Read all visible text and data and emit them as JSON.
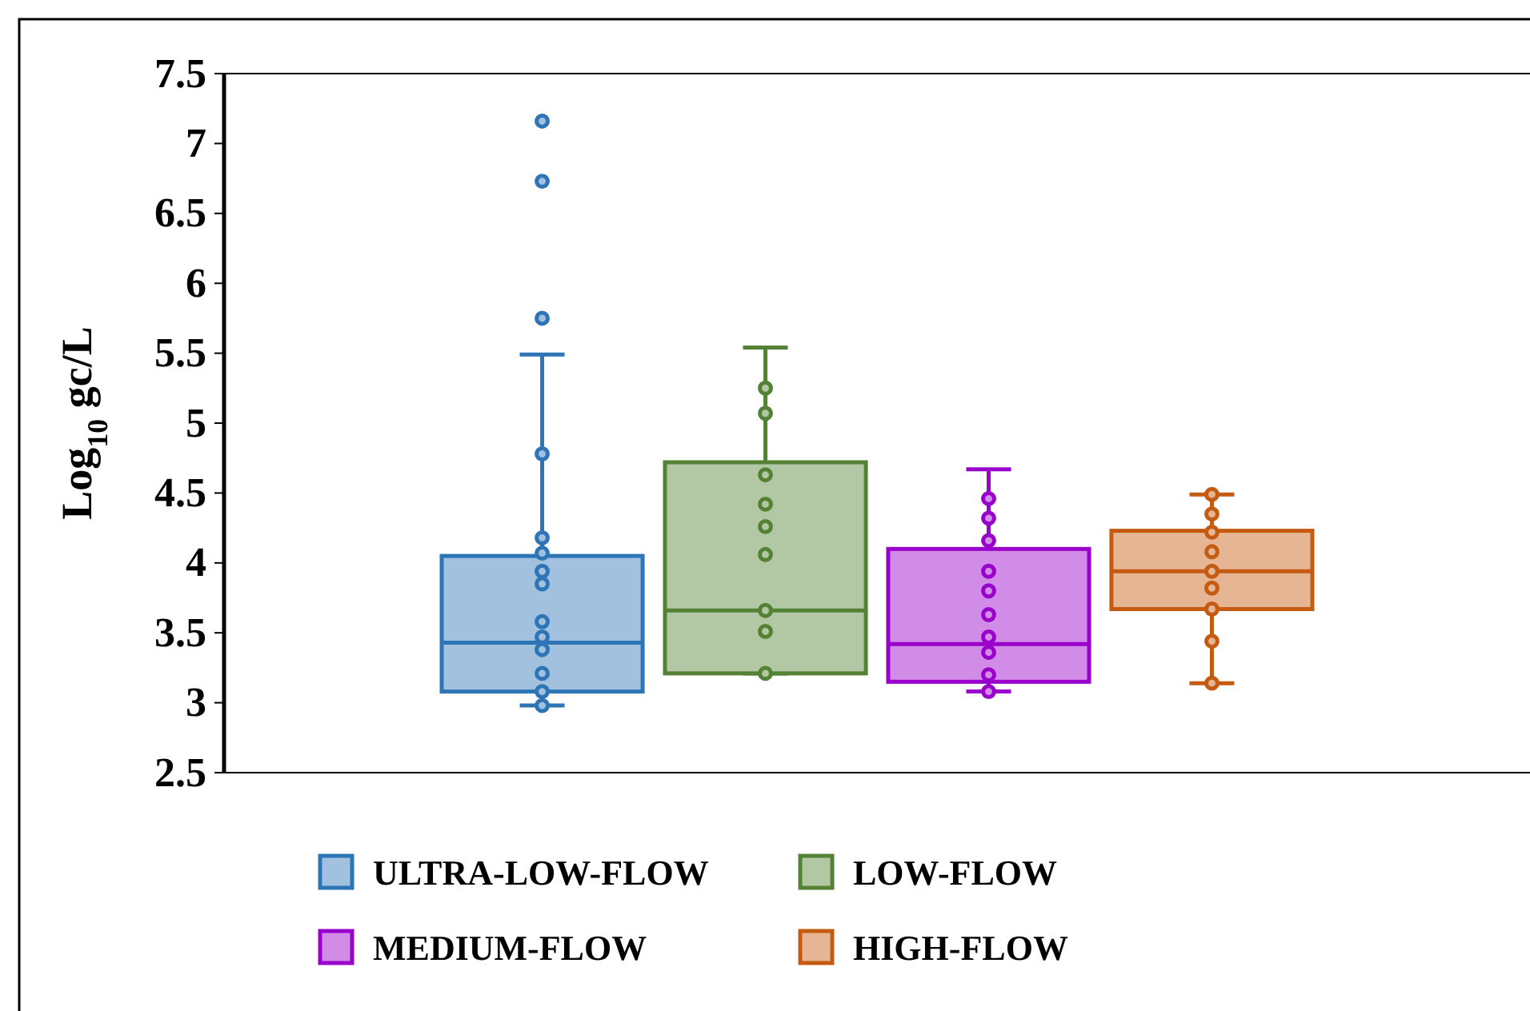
{
  "chart_data": {
    "type": "box",
    "ylabel": "Log$_{10}$ gc/L",
    "categories": [
      null
    ],
    "ylim": [
      2.5,
      7.5
    ],
    "yticks": [
      2.5,
      3,
      3.5,
      4,
      4.5,
      5,
      5.5,
      6,
      6.5,
      7,
      7.5
    ],
    "grid": false,
    "legend": "bottom",
    "marker": "circle",
    "series": [
      {
        "name": "ULTRA-LOW-FLOW",
        "color": "#2e75b6",
        "boxes": [
          {
            "low": 2.98,
            "q1": 3.08,
            "median": 3.43,
            "q3": 4.05,
            "high": 5.49,
            "outliers": [
              7.16,
              6.73,
              5.75,
              4.78,
              4.18,
              4.07,
              3.94,
              3.85,
              3.58,
              3.47,
              3.38,
              3.21,
              3.08,
              2.98
            ]
          }
        ]
      },
      {
        "name": "LOW-FLOW",
        "color": "#548235",
        "boxes": [
          {
            "low": 3.21,
            "q1": 3.21,
            "median": 3.66,
            "q3": 4.72,
            "high": 5.54,
            "outliers": [
              5.25,
              5.07,
              4.63,
              4.42,
              4.26,
              4.06,
              3.66,
              3.51,
              3.21
            ]
          }
        ]
      },
      {
        "name": "MEDIUM-FLOW",
        "color": "#9900cc",
        "boxes": [
          {
            "low": 3.08,
            "q1": 3.15,
            "median": 3.42,
            "q3": 4.1,
            "high": 4.67,
            "outliers": [
              4.46,
              4.32,
              4.16,
              3.94,
              3.8,
              3.63,
              3.47,
              3.36,
              3.2,
              3.08
            ]
          }
        ]
      },
      {
        "name": "HIGH-FLOW",
        "color": "#c55a11",
        "boxes": [
          {
            "low": 3.14,
            "q1": 3.67,
            "median": 3.94,
            "q3": 4.23,
            "high": 4.49,
            "outliers": [
              4.49,
              4.35,
              4.22,
              4.08,
              3.94,
              3.82,
              3.67,
              3.44,
              3.14
            ]
          }
        ]
      }
    ]
  }
}
